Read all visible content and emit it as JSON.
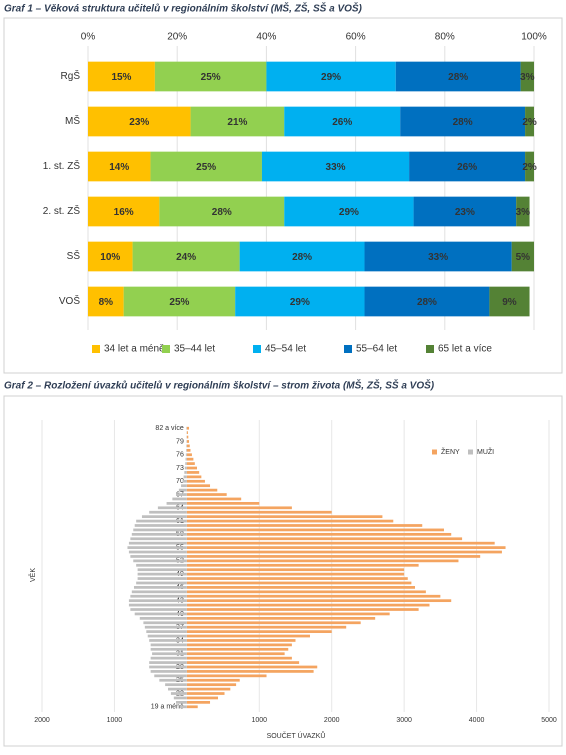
{
  "chart_data": [
    {
      "type": "bar",
      "orientation": "horizontal",
      "stacked": true,
      "title": "Graf 1 – Věková struktura učitelů v regionálním školství (MŠ, ZŠ, SŠ a VOŠ)",
      "categories": [
        "RgŠ",
        "MŠ",
        "1. st. ZŠ",
        "2. st. ZŠ",
        "SŠ",
        "VOŠ"
      ],
      "series": [
        {
          "name": "34 let a méně",
          "color": "#ffc000",
          "values": [
            15,
            23,
            14,
            16,
            10,
            8
          ],
          "value_labels": [
            "15%",
            "23%",
            "14%",
            "16%",
            "10%",
            "8%"
          ]
        },
        {
          "name": "35–44 let",
          "color": "#92d050",
          "values": [
            25,
            21,
            25,
            28,
            24,
            25
          ],
          "value_labels": [
            "25%",
            "21%",
            "25%",
            "28%",
            "24%",
            "25%"
          ]
        },
        {
          "name": "45–54 let",
          "color": "#00b0f0",
          "values": [
            29,
            26,
            33,
            29,
            28,
            29
          ],
          "value_labels": [
            "29%",
            "26%",
            "33%",
            "29%",
            "28%",
            "29%"
          ]
        },
        {
          "name": "55–64 let",
          "color": "#0070c0",
          "values": [
            28,
            28,
            26,
            23,
            33,
            28
          ],
          "value_labels": [
            "28%",
            "28%",
            "26%",
            "23%",
            "33%",
            "28%"
          ]
        },
        {
          "name": "65 let a více",
          "color": "#548235",
          "values": [
            3,
            2,
            2,
            3,
            5,
            9
          ],
          "value_labels": [
            "3%",
            "2%",
            "2%",
            "3%",
            "5%",
            "9%"
          ]
        }
      ],
      "xlim": [
        0,
        100
      ],
      "xticks": [
        {
          "value": 0,
          "label": "0%"
        },
        {
          "value": 20,
          "label": "20%"
        },
        {
          "value": 40,
          "label": "40%"
        },
        {
          "value": 60,
          "label": "60%"
        },
        {
          "value": 80,
          "label": "80%"
        },
        {
          "value": 100,
          "label": "100%"
        }
      ],
      "grid": true,
      "legend": "bottom"
    },
    {
      "type": "bar",
      "orientation": "horizontal",
      "stacked": false,
      "title": "Graf 2 – Rozložení úvazků učitelů v regionálním školství – strom života (MŠ, ZŠ, SŠ a VOŠ)",
      "x_label": "SOUČET ÚVAZKŮ",
      "y_label": "VĚK",
      "categories": [
        "19 a méně",
        null,
        null,
        "22",
        null,
        null,
        "25",
        null,
        null,
        "28",
        null,
        null,
        "31",
        null,
        null,
        "34",
        null,
        null,
        "37",
        null,
        null,
        "40",
        null,
        null,
        "43",
        null,
        null,
        "46",
        null,
        null,
        "49",
        null,
        null,
        "52",
        null,
        null,
        "55",
        null,
        null,
        "58",
        null,
        null,
        "61",
        null,
        null,
        "64",
        null,
        null,
        "67",
        null,
        null,
        "70",
        null,
        null,
        "73",
        null,
        null,
        "76",
        null,
        null,
        "79",
        null,
        null,
        "82 a více"
      ],
      "series": [
        {
          "name": "ŽENY",
          "color": "#f4a460",
          "values": [
            150,
            320,
            430,
            520,
            600,
            680,
            730,
            1100,
            1750,
            1800,
            1550,
            1450,
            1350,
            1400,
            1450,
            1500,
            1700,
            2000,
            2200,
            2400,
            2600,
            2800,
            3200,
            3350,
            3650,
            3500,
            3300,
            3150,
            3100,
            3050,
            3000,
            3000,
            3200,
            3750,
            4050,
            4350,
            4400,
            4250,
            3800,
            3650,
            3550,
            3250,
            2850,
            2700,
            2000,
            1450,
            1000,
            750,
            550,
            420,
            320,
            250,
            200,
            170,
            140,
            110,
            90,
            70,
            50,
            40,
            30,
            20,
            15,
            30
          ]
        },
        {
          "name": "MUŽI",
          "color": "#bfbfbf",
          "values": [
            -100,
            -150,
            -180,
            -220,
            -260,
            -300,
            -380,
            -450,
            -500,
            -520,
            -520,
            -500,
            -480,
            -500,
            -500,
            -520,
            -540,
            -560,
            -580,
            -600,
            -650,
            -720,
            -780,
            -800,
            -800,
            -780,
            -760,
            -730,
            -700,
            -680,
            -680,
            -680,
            -700,
            -740,
            -780,
            -800,
            -820,
            -800,
            -780,
            -760,
            -740,
            -720,
            -700,
            -620,
            -520,
            -400,
            -280,
            -200,
            -150,
            -110,
            -80,
            -60,
            -45,
            -35,
            -28,
            -22,
            -18,
            -14,
            -10,
            -8,
            -6,
            -5,
            -4,
            -8
          ]
        }
      ],
      "xlim": [
        -2000,
        5000
      ],
      "xticks": [
        {
          "value": -2000,
          "label": "2000"
        },
        {
          "value": -1000,
          "label": "1000"
        },
        1000,
        2000,
        3000,
        4000,
        5000
      ],
      "grid": true,
      "legend": "top-right"
    }
  ]
}
